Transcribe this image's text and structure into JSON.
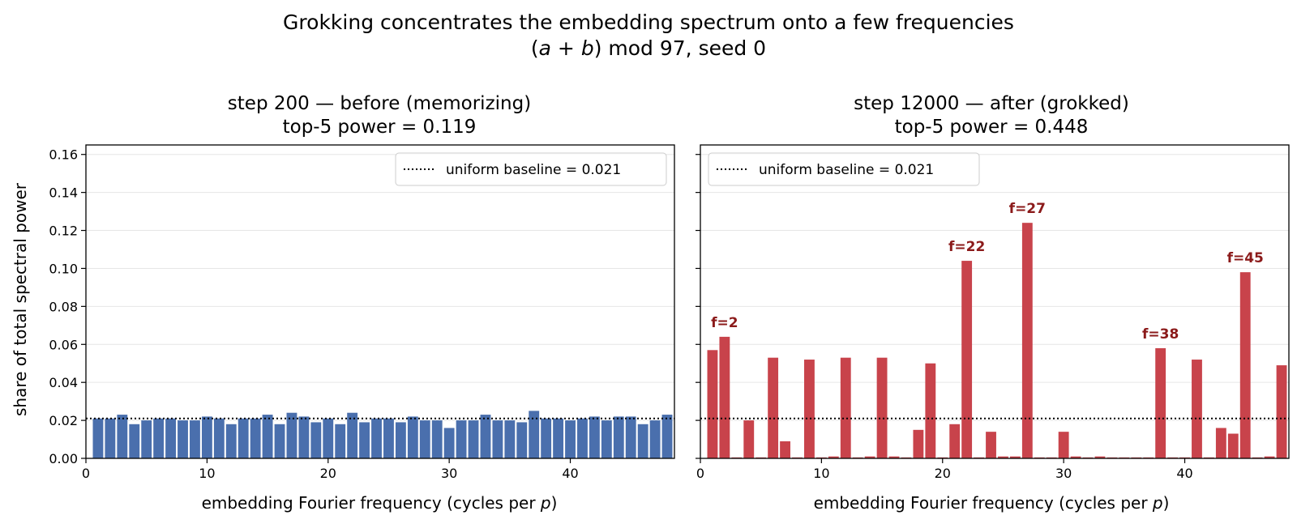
{
  "figure": {
    "suptitle_line1": "Grokking concentrates the embedding spectrum onto a few frequencies",
    "suptitle_line2_pre": "(",
    "suptitle_line2_a": "a",
    "suptitle_line2_plus": " + ",
    "suptitle_line2_b": "b",
    "suptitle_line2_post": ") mod 97, seed 0"
  },
  "chart_data": [
    {
      "type": "bar",
      "title_line1": "step 200 — before (memorizing)",
      "title_line2": "top-5 power = 0.119",
      "xlabel_pre": "embedding Fourier frequency (cycles per ",
      "xlabel_var": "p",
      "xlabel_post": ")",
      "ylabel": "share of total spectral power",
      "xlim": [
        0,
        48.6
      ],
      "ylim": [
        0,
        0.165
      ],
      "xticks": [
        0,
        10,
        20,
        30,
        40
      ],
      "yticks": [
        0.0,
        0.02,
        0.04,
        0.06,
        0.08,
        0.1,
        0.12,
        0.14,
        0.16
      ],
      "ytick_labels": [
        "0.00",
        "0.02",
        "0.04",
        "0.06",
        "0.08",
        "0.10",
        "0.12",
        "0.14",
        "0.16"
      ],
      "grid": "horizontal",
      "bar_color": "#4a6fad",
      "baseline": 0.021,
      "legend": {
        "label": "uniform baseline = 0.021",
        "position": "top-right"
      },
      "x": [
        1,
        2,
        3,
        4,
        5,
        6,
        7,
        8,
        9,
        10,
        11,
        12,
        13,
        14,
        15,
        16,
        17,
        18,
        19,
        20,
        21,
        22,
        23,
        24,
        25,
        26,
        27,
        28,
        29,
        30,
        31,
        32,
        33,
        34,
        35,
        36,
        37,
        38,
        39,
        40,
        41,
        42,
        43,
        44,
        45,
        46,
        47,
        48
      ],
      "values": [
        0.021,
        0.021,
        0.023,
        0.018,
        0.02,
        0.021,
        0.021,
        0.02,
        0.02,
        0.022,
        0.021,
        0.018,
        0.021,
        0.021,
        0.023,
        0.018,
        0.024,
        0.022,
        0.019,
        0.021,
        0.018,
        0.024,
        0.019,
        0.021,
        0.021,
        0.019,
        0.022,
        0.02,
        0.02,
        0.016,
        0.02,
        0.02,
        0.023,
        0.02,
        0.02,
        0.019,
        0.025,
        0.021,
        0.021,
        0.02,
        0.021,
        0.022,
        0.02,
        0.022,
        0.022,
        0.018,
        0.02,
        0.023
      ],
      "annotations": []
    },
    {
      "type": "bar",
      "title_line1": "step 12000 — after (grokked)",
      "title_line2": "top-5 power = 0.448",
      "xlabel_pre": "embedding Fourier frequency (cycles per ",
      "xlabel_var": "p",
      "xlabel_post": ")",
      "ylabel": "",
      "xlim": [
        0,
        48.6
      ],
      "ylim": [
        0,
        0.165
      ],
      "xticks": [
        0,
        10,
        20,
        30,
        40
      ],
      "yticks": [
        0.0,
        0.02,
        0.04,
        0.06,
        0.08,
        0.1,
        0.12,
        0.14,
        0.16
      ],
      "ytick_labels": [],
      "grid": "horizontal",
      "bar_color": "#c8434b",
      "baseline": 0.021,
      "legend": {
        "label": "uniform baseline = 0.021",
        "position": "top-left"
      },
      "x": [
        1,
        2,
        3,
        4,
        5,
        6,
        7,
        8,
        9,
        10,
        11,
        12,
        13,
        14,
        15,
        16,
        17,
        18,
        19,
        20,
        21,
        22,
        23,
        24,
        25,
        26,
        27,
        28,
        29,
        30,
        31,
        32,
        33,
        34,
        35,
        36,
        37,
        38,
        39,
        40,
        41,
        42,
        43,
        44,
        45,
        46,
        47,
        48
      ],
      "values": [
        0.057,
        0.064,
        0.0005,
        0.02,
        0.0005,
        0.053,
        0.009,
        0.0005,
        0.052,
        0.0005,
        0.001,
        0.053,
        0.0005,
        0.001,
        0.053,
        0.001,
        0.0005,
        0.015,
        0.05,
        0.0005,
        0.018,
        0.104,
        0.0005,
        0.014,
        0.001,
        0.001,
        0.124,
        0.0005,
        0.0005,
        0.014,
        0.001,
        0.0005,
        0.001,
        0.0005,
        0.0005,
        0.0005,
        0.0005,
        0.058,
        0.0005,
        0.0005,
        0.052,
        0.0005,
        0.016,
        0.013,
        0.098,
        0.0005,
        0.001,
        0.049
      ],
      "annotations": [
        {
          "x": 2,
          "value": 0.064,
          "label": "f=2"
        },
        {
          "x": 22,
          "value": 0.104,
          "label": "f=22"
        },
        {
          "x": 27,
          "value": 0.124,
          "label": "f=27"
        },
        {
          "x": 38,
          "value": 0.058,
          "label": "f=38"
        },
        {
          "x": 45,
          "value": 0.098,
          "label": "f=45"
        }
      ]
    }
  ]
}
